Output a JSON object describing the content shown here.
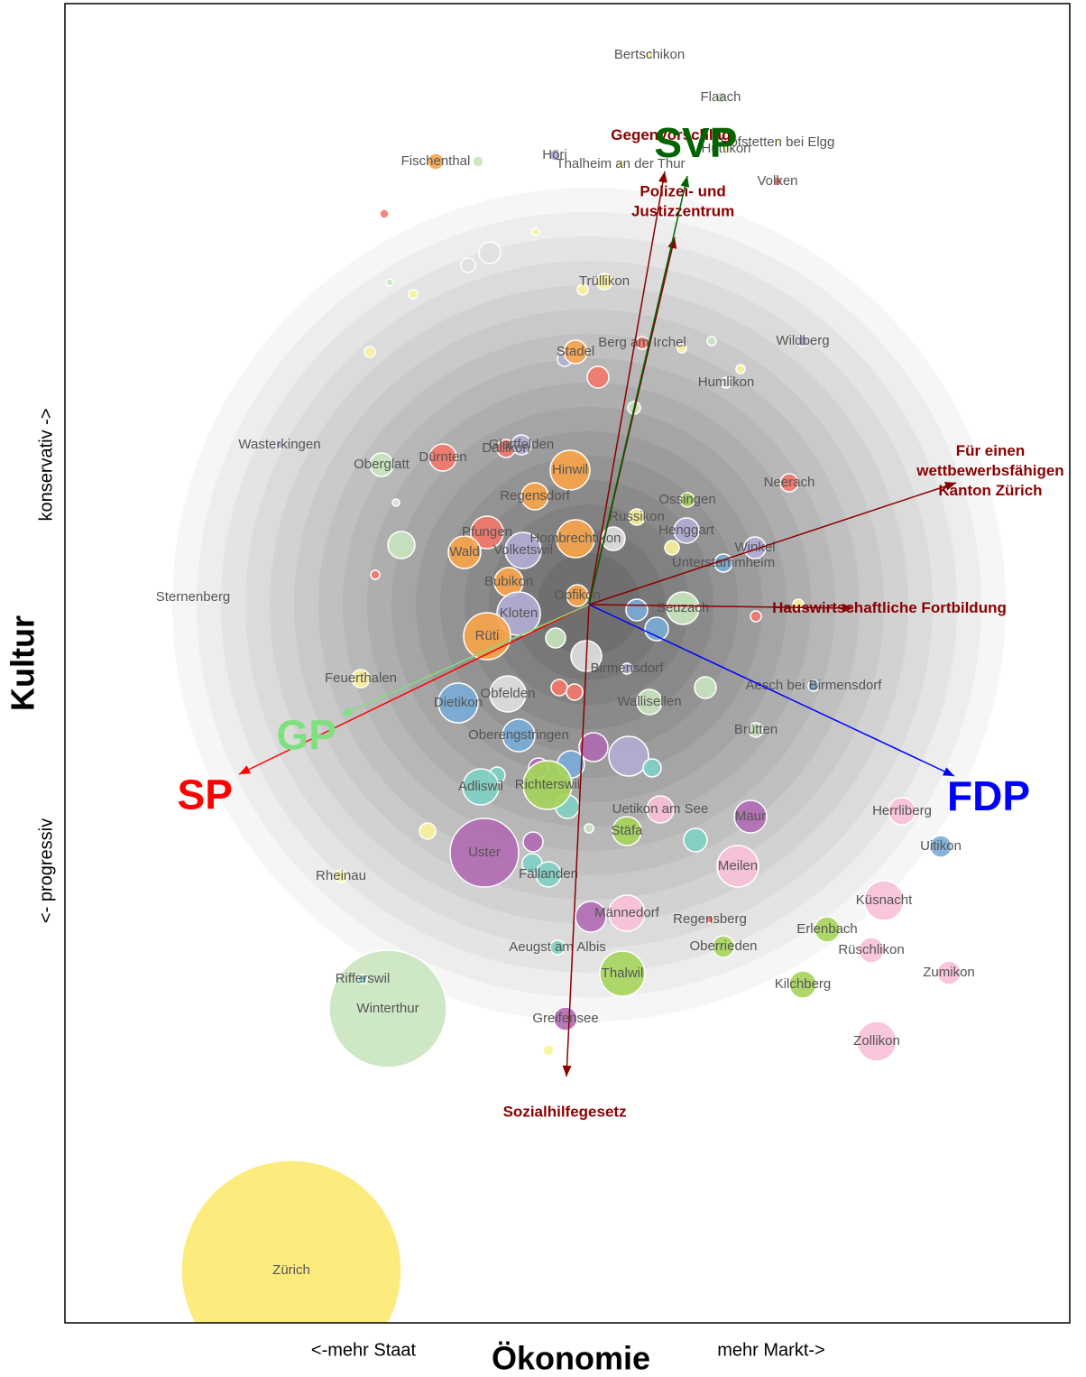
{
  "chart_data": {
    "type": "bubble",
    "x_label": "Ökonomie",
    "x_left_label": "<-mehr Staat",
    "x_right_label": "mehr Markt->",
    "y_label": "Kultur",
    "y_top_label": "konservativ ->",
    "y_bottom_label": "<- progressiv",
    "xlim": [
      -5.81,
      5.33
    ],
    "ylim": [
      -7.96,
      6.66
    ],
    "points": {
      "names": [
        "Zürich",
        "Winterthur",
        "Uster",
        null,
        null,
        null,
        null,
        null,
        null,
        null,
        null,
        null,
        null,
        null,
        null,
        null,
        null,
        null,
        null,
        null,
        null,
        null,
        null,
        null,
        null,
        null,
        null,
        null,
        null,
        null,
        null,
        null,
        null,
        null,
        null,
        null,
        null,
        null,
        null,
        null,
        null,
        null,
        null,
        null,
        null,
        null,
        "Bertschikon",
        "Flaach",
        "Hofstetten bei Elgg",
        "Volken",
        "Hüttikon",
        "Thalheim an der Thur",
        "Höri",
        "Fischenthal",
        "Trüllikon",
        "Stadel",
        "Wildberg",
        "Berg am Irchel",
        "Humlikon",
        "Wasterkingen",
        "Oberglatt",
        "Dällikon",
        "Glattfelden",
        "Dürnten",
        "Hinwil",
        "Regensdorf",
        "Ossingen",
        "Neerach",
        "Henggart",
        "Russikon",
        "Winkel",
        "Pfungen",
        "Volketswil",
        "Wald",
        "Sternenberg",
        "Hombrechtikon",
        "Unterstammheim",
        "Bubikon",
        "Opfikon",
        "Seuzach",
        "Kloten",
        "Rüti",
        "Aesch bei Birmensdorf",
        "Feuerthalen",
        "Dietikon",
        "Birmensdorf",
        "Obfelden",
        "Wallisellen",
        "Brütten",
        "Oberengstringen",
        "Richterswil",
        "Adliswil",
        "Herrliberg",
        "Maur",
        "Uetikon am See",
        "Stäfa",
        "Uitikon",
        "Meilen",
        "Küsnacht",
        "Rheinau",
        "Fällanden",
        "Regensberg",
        "Rüschlikon",
        "Männedorf",
        "Erlenbach",
        "Zumikon",
        "Rifferswil",
        "Aeugst am Albis",
        "Oberrieden",
        "Thalwil",
        "Kilchberg",
        "Greifensee",
        "Zollikon"
      ],
      "x": [
        -3.3,
        -2.23,
        -1.16,
        -2.27,
        -1.23,
        -1.1,
        -1.34,
        -0.59,
        -2.21,
        -1.95,
        -0.07,
        -2.43,
        0.1,
        -0.27,
        -2.14,
        -2.08,
        -2.37,
        1.03,
        1.36,
        1.68,
        0.5,
        0.27,
        0.92,
        0.75,
        0.53,
        -0.03,
        -0.37,
        -0.33,
        -0.16,
        1.29,
        0.05,
        0.44,
        -0.2,
        -0.56,
        -1.02,
        -0.24,
        -1.79,
        -0.62,
        -0.63,
        0.02,
        1.18,
        0.7,
        -0.45,
        0.0,
        1.85,
        2.32,
        0.67,
        1.46,
        2.09,
        2.09,
        1.52,
        0.35,
        -0.38,
        -1.7,
        0.17,
        -0.15,
        2.37,
        0.59,
        1.52,
        -3.43,
        -2.3,
        -0.92,
        -0.75,
        -1.62,
        -0.21,
        -0.6,
        1.09,
        2.22,
        1.08,
        0.53,
        1.84,
        -1.13,
        -0.73,
        -1.38,
        -4.39,
        -0.15,
        1.49,
        -0.89,
        -0.13,
        1.04,
        -0.78,
        -1.13,
        2.49,
        -2.53,
        -1.45,
        0.42,
        -0.9,
        0.67,
        1.85,
        -0.78,
        -0.46,
        -1.2,
        3.47,
        1.79,
        0.79,
        0.42,
        3.9,
        1.65,
        3.27,
        -2.75,
        -0.45,
        1.34,
        3.13,
        0.42,
        2.64,
        3.99,
        -2.51,
        -0.35,
        1.49,
        0.37,
        2.37,
        -0.26,
        3.19
      ],
      "y": [
        -7.38,
        -4.48,
        -2.75,
        4.33,
        4.91,
        3.9,
        3.76,
        4.13,
        3.57,
        3.44,
        3.49,
        2.8,
        2.52,
        2.72,
        1.13,
        0.66,
        0.33,
        2.84,
        2.92,
        2.61,
        2.18,
        0.73,
        0.63,
        -0.27,
        -0.06,
        -0.57,
        -0.37,
        -0.92,
        -0.97,
        -0.92,
        -1.58,
        -1.68,
        -1.77,
        -1.81,
        -1.89,
        -2.24,
        -2.51,
        -2.63,
        -2.87,
        -3.46,
        -2.61,
        -1.81,
        -4.94,
        -2.48,
        -0.13,
        0.0,
        6.09,
        5.62,
        5.12,
        4.69,
        5.05,
        4.88,
        4.98,
        4.91,
        3.58,
        2.8,
        2.92,
        2.9,
        2.46,
        1.77,
        1.55,
        1.73,
        1.77,
        1.63,
        1.49,
        1.2,
        1.16,
        1.35,
        0.82,
        0.97,
        0.63,
        0.8,
        0.6,
        0.58,
        0.08,
        0.73,
        0.46,
        0.25,
        0.1,
        -0.04,
        -0.1,
        -0.35,
        -0.9,
        -0.82,
        -1.09,
        -0.71,
        -0.99,
        -1.08,
        -1.39,
        -1.45,
        -2.0,
        -2.02,
        -2.29,
        -2.35,
        -2.27,
        -2.51,
        -2.68,
        -2.9,
        -3.28,
        -3.01,
        -2.99,
        -3.49,
        -3.83,
        -3.42,
        -3.6,
        -4.08,
        -4.15,
        -3.8,
        -3.79,
        -4.09,
        -4.21,
        -4.59,
        -4.84
      ],
      "size": [
        1.22,
        0.65,
        0.38,
        0.05,
        0.06,
        0.12,
        0.08,
        0.04,
        0.04,
        0.05,
        0.06,
        0.06,
        0.12,
        0.08,
        0.04,
        0.15,
        0.05,
        0.05,
        0.05,
        0.05,
        0.07,
        0.13,
        0.08,
        0.13,
        0.12,
        0.17,
        0.11,
        0.09,
        0.09,
        0.12,
        0.16,
        0.22,
        0.15,
        0.11,
        0.09,
        0.13,
        0.09,
        0.11,
        0.11,
        0.17,
        0.13,
        0.1,
        0.06,
        0.05,
        0.06,
        0.06,
        0.04,
        0.06,
        0.03,
        0.05,
        0.04,
        0.04,
        0.06,
        0.09,
        0.09,
        0.13,
        0.06,
        0.07,
        0.06,
        0.04,
        0.13,
        0.1,
        0.11,
        0.15,
        0.22,
        0.15,
        0.08,
        0.1,
        0.14,
        0.09,
        0.12,
        0.18,
        0.2,
        0.18,
        0.03,
        0.21,
        0.1,
        0.16,
        0.12,
        0.18,
        0.24,
        0.26,
        0.06,
        0.1,
        0.22,
        0.06,
        0.2,
        0.14,
        0.08,
        0.18,
        0.27,
        0.2,
        0.15,
        0.18,
        0.15,
        0.16,
        0.12,
        0.23,
        0.22,
        0.07,
        0.14,
        0.04,
        0.14,
        0.2,
        0.14,
        0.13,
        0.05,
        0.08,
        0.12,
        0.25,
        0.15,
        0.13,
        0.22
      ],
      "colors": [
        "#fde96f",
        "#c9e6c0",
        "#b06ab3",
        "#f4776a",
        "#c9e6c0",
        "#e0e0e0",
        "#e0e0e0",
        "#f9f29a",
        "#c9e6c0",
        "#f9f29a",
        "#f9f29a",
        "#f9f29a",
        "#f4776a",
        "#b3aed6",
        "#e0e0e0",
        "#c9e6c0",
        "#f4776a",
        "#f9f29a",
        "#c9e6c0",
        "#f9f29a",
        "#c9e6c0",
        "#e0e0e0",
        "#f9f29a",
        "#79acd6",
        "#79acd6",
        "#e0e0e0",
        "#c9e6c0",
        "#f4776a",
        "#f4776a",
        "#c9e6c0",
        "#b06ab3",
        "#b3aed6",
        "#79acd6",
        "#b06ab3",
        "#7fd0c4",
        "#7fd0c4",
        "#f9f29a",
        "#b06ab3",
        "#7fd0c4",
        "#b06ab3",
        "#7fd0c4",
        "#7fd0c4",
        "#f9f29a",
        "#c9e6c0",
        "#f4776a",
        "#f9f29a",
        "#f9f29a",
        "#c9e6c0",
        "#f9f29a",
        "#f4776a",
        "#f9f29a",
        "#f9f29a",
        "#b3aed6",
        "#f9a54a",
        "#f9f29a",
        "#f9a54a",
        "#b3aed6",
        "#f4776a",
        "#e0e0e0",
        "#b3aed6",
        "#c9e6c0",
        "#f4776a",
        "#b3aed6",
        "#f4776a",
        "#f9a54a",
        "#f9a54a",
        "#a5d55a",
        "#f4776a",
        "#b3aed6",
        "#f9f29a",
        "#b3aed6",
        "#f4776a",
        "#b3aed6",
        "#f9a54a",
        "#e0e0e0",
        "#f9a54a",
        "#79acd6",
        "#f9a54a",
        "#f9a54a",
        "#c9e6c0",
        "#b3aed6",
        "#f9a54a",
        "#79acd6",
        "#f9f29a",
        "#79acd6",
        "#b3aed6",
        "#e0e0e0",
        "#c9e6c0",
        "#c9e6c0",
        "#79acd6",
        "#a5d55a",
        "#7fd0c4",
        "#f9c0d8",
        "#b06ab3",
        "#f9c0d8",
        "#a5d55a",
        "#79acd6",
        "#f9c0d8",
        "#f9c0d8",
        "#f9f29a",
        "#7fd0c4",
        "#f4776a",
        "#f9c0d8",
        "#f9c0d8",
        "#a5d55a",
        "#f9c0d8",
        "#7fd0c4",
        "#7fd0c4",
        "#a5d55a",
        "#a5d55a",
        "#a5d55a",
        "#b06ab3",
        "#f9c0d8"
      ]
    },
    "votes": [
      {
        "name": [
          "Gegenvorschlag"
        ],
        "color": "#8b0000",
        "x": 0.84,
        "y": 4.8
      },
      {
        "name": [
          "Polizei- und",
          "Justizzentrum"
        ],
        "color": "#8b0000",
        "x": 0.95,
        "y": 4.07
      },
      {
        "name": [
          "Für einen",
          "wettbewerbsfähigen",
          "Kanton Zürich"
        ],
        "color": "#8b0000",
        "x": 4.07,
        "y": 1.35
      },
      {
        "name": [
          "Hauswirtschaftliche Fortbildung"
        ],
        "color": "#8b0000",
        "x": 2.93,
        "y": -0.04
      },
      {
        "name": [
          "Sozialhilfegesetz"
        ],
        "color": "#8b0000",
        "x": -0.25,
        "y": -5.23
      }
    ],
    "parties": [
      {
        "name": "SVP",
        "color": "#006400",
        "x": 1.09,
        "y": 4.75
      },
      {
        "name": "SP",
        "color": "#ff0000",
        "x": -3.88,
        "y": -1.88
      },
      {
        "name": "FDP",
        "color": "#0000ff",
        "x": 4.05,
        "y": -1.9
      },
      {
        "name": "GP",
        "color": "#7ee07e",
        "x": -2.75,
        "y": -1.23
      }
    ]
  }
}
